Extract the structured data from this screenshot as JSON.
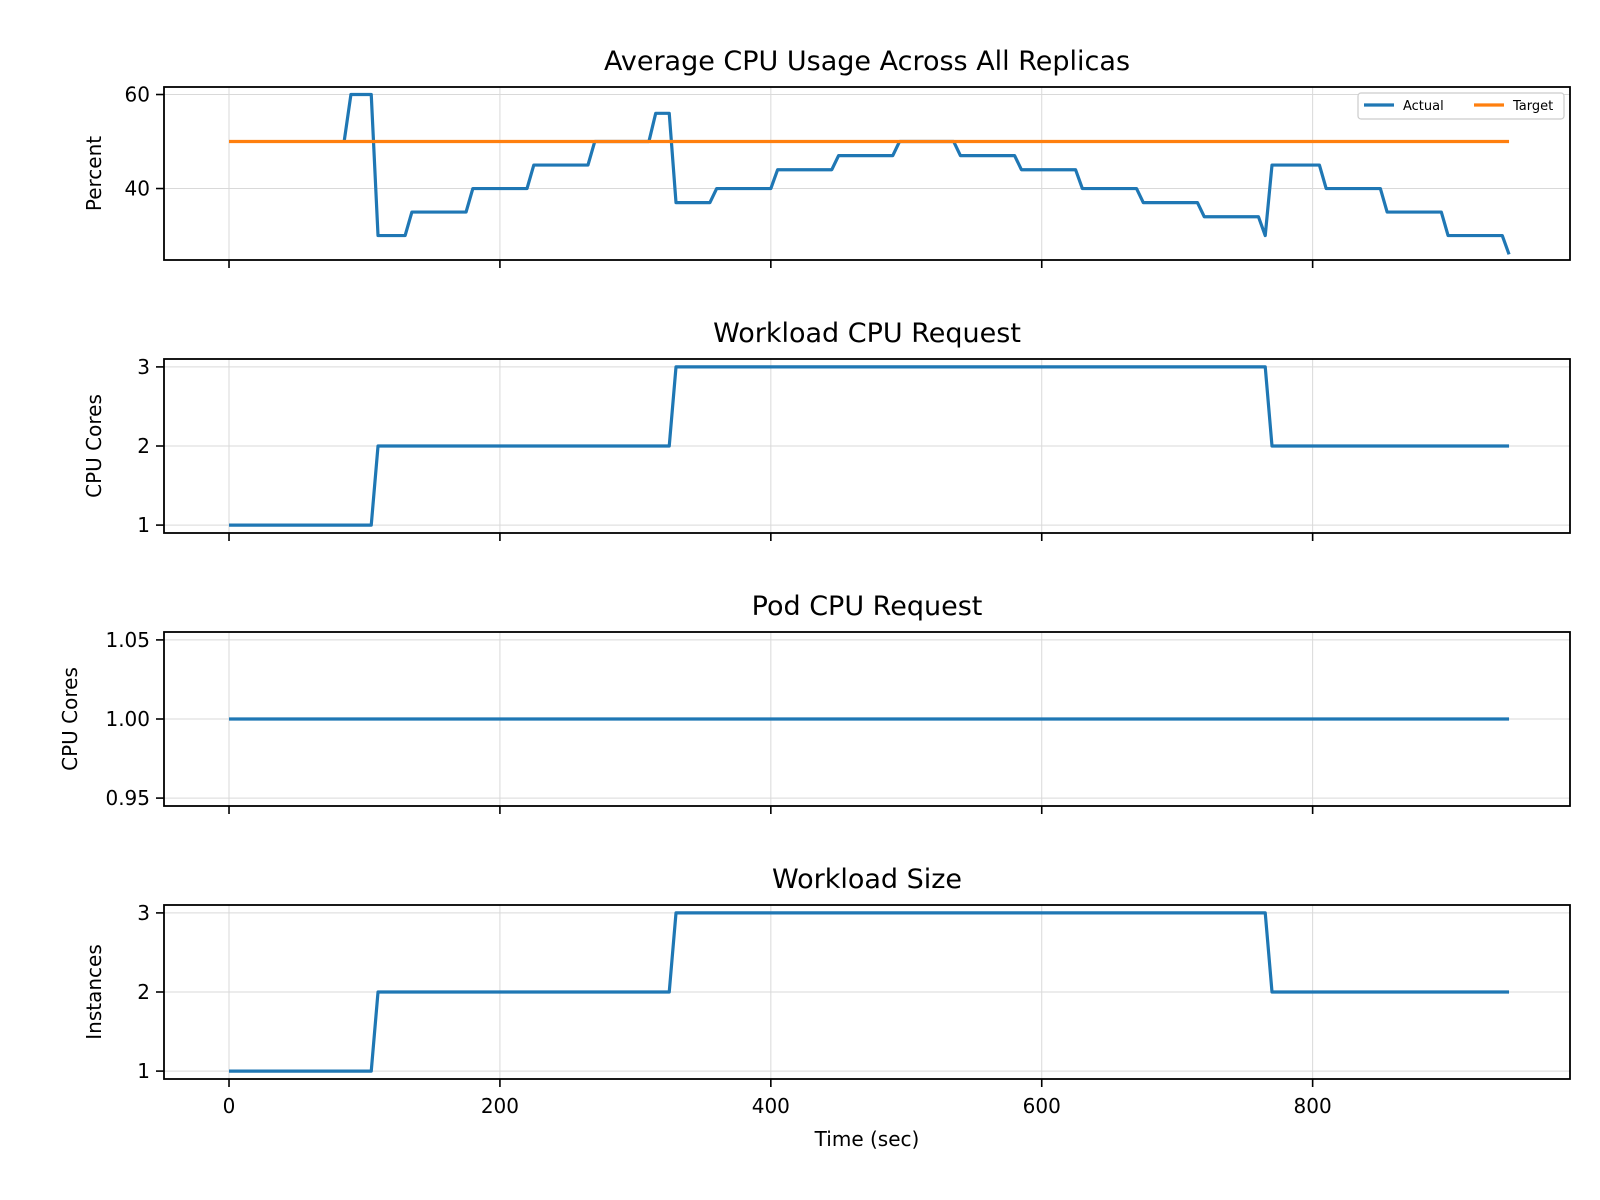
{
  "chart_data": [
    {
      "type": "line",
      "title": "Average CPU Usage Across All Replicas",
      "xlabel": "",
      "ylabel": "Percent",
      "xlim": [
        -48,
        990
      ],
      "ylim": [
        24.8,
        61.6
      ],
      "xticks": [
        0,
        200,
        400,
        600,
        800
      ],
      "yticks": [
        40,
        60
      ],
      "ytick_labels": [
        "40",
        "60"
      ],
      "grid": true,
      "legend": "top-right",
      "series": [
        {
          "name": "Actual",
          "color": "#1f77b4",
          "points": [
            [
              85,
              50
            ],
            [
              90,
              60
            ],
            [
              105,
              60
            ],
            [
              110,
              30
            ],
            [
              130,
              30
            ],
            [
              135,
              35
            ],
            [
              175,
              35
            ],
            [
              180,
              40
            ],
            [
              220,
              40
            ],
            [
              225,
              45
            ],
            [
              265,
              45
            ],
            [
              270,
              50
            ],
            [
              310,
              50
            ],
            [
              315,
              56
            ],
            [
              325,
              56
            ],
            [
              330,
              37
            ],
            [
              355,
              37
            ],
            [
              360,
              40
            ],
            [
              400,
              40
            ],
            [
              405,
              44
            ],
            [
              445,
              44
            ],
            [
              450,
              47
            ],
            [
              490,
              47
            ],
            [
              495,
              50
            ],
            [
              535,
              50
            ],
            [
              540,
              47
            ],
            [
              580,
              47
            ],
            [
              585,
              44
            ],
            [
              625,
              44
            ],
            [
              630,
              40
            ],
            [
              670,
              40
            ],
            [
              675,
              37
            ],
            [
              715,
              37
            ],
            [
              720,
              34
            ],
            [
              760,
              34
            ],
            [
              765,
              30
            ],
            [
              770,
              45
            ],
            [
              805,
              45
            ],
            [
              810,
              40
            ],
            [
              850,
              40
            ],
            [
              855,
              35
            ],
            [
              895,
              35
            ],
            [
              900,
              30
            ],
            [
              940,
              30
            ],
            [
              945,
              26
            ]
          ]
        },
        {
          "name": "Target",
          "color": "#ff7f0e",
          "points": [
            [
              0,
              50
            ],
            [
              945,
              50
            ]
          ]
        }
      ]
    },
    {
      "type": "line",
      "title": "Workload CPU Request",
      "xlabel": "",
      "ylabel": "CPU Cores",
      "xlim": [
        -48,
        990
      ],
      "ylim": [
        0.9,
        3.1
      ],
      "xticks": [
        0,
        200,
        400,
        600,
        800
      ],
      "yticks": [
        1,
        2,
        3
      ],
      "ytick_labels": [
        "1",
        "2",
        "3"
      ],
      "grid": true,
      "series": [
        {
          "color": "#1f77b4",
          "points": [
            [
              0,
              1
            ],
            [
              105,
              1
            ],
            [
              110,
              2
            ],
            [
              325,
              2
            ],
            [
              330,
              3
            ],
            [
              765,
              3
            ],
            [
              770,
              2
            ],
            [
              945,
              2
            ]
          ]
        }
      ]
    },
    {
      "type": "line",
      "title": "Pod CPU Request",
      "xlabel": "",
      "ylabel": "CPU Cores",
      "xlim": [
        -48,
        990
      ],
      "ylim": [
        0.945,
        1.055
      ],
      "xticks": [
        0,
        200,
        400,
        600,
        800
      ],
      "yticks": [
        0.95,
        1.0,
        1.05
      ],
      "ytick_labels": [
        "0.95",
        "1.00",
        "1.05"
      ],
      "grid": true,
      "series": [
        {
          "color": "#1f77b4",
          "points": [
            [
              0,
              1.0
            ],
            [
              945,
              1.0
            ]
          ]
        }
      ]
    },
    {
      "type": "line",
      "title": "Workload Size",
      "xlabel": "Time (sec)",
      "ylabel": "Instances",
      "xlim": [
        -48,
        990
      ],
      "ylim": [
        0.9,
        3.1
      ],
      "xticks": [
        0,
        200,
        400,
        600,
        800
      ],
      "xtick_labels": [
        "0",
        "200",
        "400",
        "600",
        "800"
      ],
      "yticks": [
        1,
        2,
        3
      ],
      "ytick_labels": [
        "1",
        "2",
        "3"
      ],
      "grid": true,
      "series": [
        {
          "color": "#1f77b4",
          "points": [
            [
              0,
              1
            ],
            [
              105,
              1
            ],
            [
              110,
              2
            ],
            [
              325,
              2
            ],
            [
              330,
              3
            ],
            [
              765,
              3
            ],
            [
              770,
              2
            ],
            [
              945,
              2
            ]
          ]
        }
      ]
    }
  ]
}
